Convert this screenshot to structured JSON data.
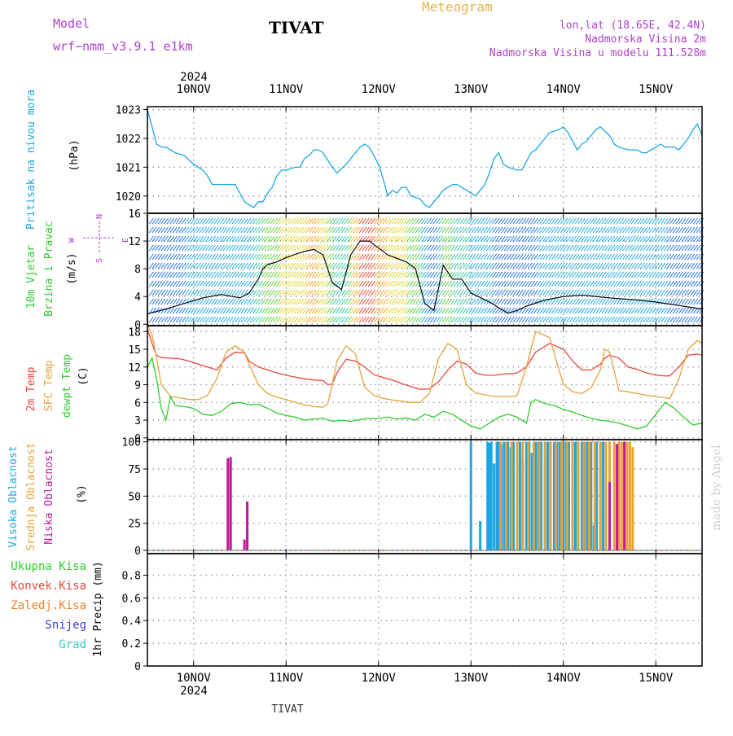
{
  "header": {
    "model_label": "Model",
    "model_name": "wrf−nmm_v3.9.1  e1km",
    "station": "TIVAT",
    "product": "Meteogram",
    "lonlat": "lon,lat (18.65E, 42.4N)",
    "altitude": "Nadmorska Visina 2m",
    "altitude_model": "Nadmorska Visina u modelu 111.528m"
  },
  "footer": {
    "station": "TIVAT",
    "watermark": "made by Angel"
  },
  "colors": {
    "pressure": "#1aa7e6",
    "temp2m": "#e8463c",
    "sfctemp": "#e6a23a",
    "dewpt": "#2ecc2e",
    "cloud_high": "#1aa7e6",
    "cloud_mid": "#e6a23a",
    "cloud_low": "#c0179a",
    "precip_total": "#2ecc2e",
    "precip_conv": "#e8463c",
    "precip_frozen": "#f07f2a",
    "snow": "#3a3adc",
    "graupel": "#2ec8c8",
    "grid": "#9a9a9a"
  },
  "chart_data": [
    {
      "type": "line",
      "id": "pressure",
      "ylabel_lines": [
        "Pritisak na nivou mora",
        "(hPa)"
      ],
      "x_unit": "day of month (November 2024)",
      "xlim": [
        9.5,
        15.5
      ],
      "ylim": [
        1019.4,
        1023.1
      ],
      "yticks": [
        1020,
        1021,
        1022,
        1023
      ],
      "top_axis_year": "2024",
      "x_tick_labels": [
        "10NOV",
        "11NOV",
        "12NOV",
        "13NOV",
        "14NOV",
        "15NOV"
      ],
      "series": [
        {
          "name": "",
          "x": [
            9.5,
            9.55,
            9.6,
            9.65,
            9.7,
            9.75,
            9.8,
            9.9,
            10.0,
            10.1,
            10.15,
            10.2,
            10.25,
            10.3,
            10.4,
            10.45,
            10.5,
            10.55,
            10.6,
            10.65,
            10.7,
            10.75,
            10.8,
            10.85,
            10.9,
            10.95,
            11.0,
            11.1,
            11.15,
            11.2,
            11.25,
            11.3,
            11.35,
            11.4,
            11.5,
            11.55,
            11.65,
            11.75,
            11.8,
            11.85,
            11.9,
            12.0,
            12.05,
            12.1,
            12.15,
            12.2,
            12.25,
            12.3,
            12.35,
            12.45,
            12.5,
            12.55,
            12.6,
            12.65,
            12.7,
            12.75,
            12.8,
            12.85,
            12.9,
            13.0,
            13.05,
            13.1,
            13.15,
            13.2,
            13.25,
            13.3,
            13.35,
            13.4,
            13.5,
            13.55,
            13.6,
            13.65,
            13.7,
            13.8,
            13.85,
            13.95,
            14.0,
            14.05,
            14.1,
            14.15,
            14.2,
            14.25,
            14.3,
            14.35,
            14.4,
            14.5,
            14.55,
            14.6,
            14.7,
            14.8,
            14.85,
            14.9,
            15.0,
            15.05,
            15.1,
            15.15,
            15.2,
            15.25,
            15.3,
            15.35,
            15.4,
            15.45,
            15.5
          ],
          "y": [
            1023.0,
            1022.4,
            1021.8,
            1021.7,
            1021.7,
            1021.6,
            1021.5,
            1021.4,
            1021.1,
            1020.9,
            1020.7,
            1020.4,
            1020.4,
            1020.4,
            1020.4,
            1020.4,
            1020.1,
            1019.8,
            1019.7,
            1019.6,
            1019.8,
            1019.8,
            1020.1,
            1020.3,
            1020.7,
            1020.9,
            1020.9,
            1021.0,
            1021.0,
            1021.3,
            1021.4,
            1021.6,
            1021.6,
            1021.5,
            1021.0,
            1020.8,
            1021.1,
            1021.5,
            1021.7,
            1021.8,
            1021.7,
            1021.1,
            1020.6,
            1020.0,
            1020.2,
            1020.1,
            1020.3,
            1020.3,
            1020.0,
            1019.9,
            1019.7,
            1019.6,
            1019.8,
            1020.0,
            1020.2,
            1020.3,
            1020.4,
            1020.4,
            1020.3,
            1020.1,
            1020.0,
            1020.2,
            1020.4,
            1020.8,
            1021.3,
            1021.5,
            1021.1,
            1021.0,
            1020.9,
            1020.9,
            1021.2,
            1021.5,
            1021.6,
            1022.0,
            1022.2,
            1022.3,
            1022.4,
            1022.2,
            1021.9,
            1021.6,
            1021.8,
            1021.9,
            1022.1,
            1022.3,
            1022.4,
            1022.1,
            1021.8,
            1021.7,
            1021.6,
            1021.6,
            1021.5,
            1021.5,
            1021.7,
            1021.8,
            1021.7,
            1021.7,
            1021.7,
            1021.6,
            1021.8,
            1022.0,
            1022.3,
            1022.5,
            1022.1
          ]
        }
      ]
    },
    {
      "type": "line",
      "id": "wind",
      "ylabel_lines": [
        "10m Vjetar",
        "Brzina i Pravac",
        "(m/s)"
      ],
      "compass": {
        "n": "N",
        "s": "S",
        "e": "E",
        "w": "W"
      },
      "xlim": [
        9.5,
        15.5
      ],
      "ylim": [
        -0.2,
        16
      ],
      "yticks": [
        0,
        4,
        8,
        12,
        16
      ],
      "series": [
        {
          "name": "",
          "x": [
            9.5,
            9.7,
            9.9,
            10.1,
            10.3,
            10.5,
            10.6,
            10.7,
            10.75,
            10.8,
            10.9,
            11.0,
            11.1,
            11.2,
            11.3,
            11.4,
            11.5,
            11.6,
            11.7,
            11.8,
            11.9,
            12.0,
            12.1,
            12.2,
            12.3,
            12.4,
            12.5,
            12.6,
            12.7,
            12.8,
            12.9,
            13.0,
            13.2,
            13.4,
            13.5,
            13.6,
            13.8,
            14.0,
            14.2,
            14.5,
            14.8,
            15.0,
            15.2,
            15.5
          ],
          "y": [
            1.5,
            2.2,
            3.0,
            3.8,
            4.3,
            3.8,
            4.5,
            6.5,
            8.0,
            8.6,
            9.0,
            9.6,
            10.1,
            10.5,
            10.8,
            10.0,
            6.0,
            5.0,
            10.0,
            12.0,
            12.0,
            11.0,
            10.0,
            9.5,
            9.0,
            8.0,
            3.0,
            2.0,
            8.5,
            6.5,
            6.5,
            4.5,
            3.2,
            1.6,
            2.0,
            2.6,
            3.5,
            4.0,
            4.2,
            3.8,
            3.5,
            3.2,
            2.8,
            2.2
          ]
        }
      ],
      "barb_colors_note": "wind direction barbs color-coded by speed (blue/green/yellow/orange/red)"
    },
    {
      "type": "line",
      "id": "temperature",
      "ylabel_lines": [
        "2m Temp",
        "SFC Temp",
        "dewpt Temp",
        "(C)"
      ],
      "xlim": [
        9.5,
        15.5
      ],
      "ylim": [
        -0.3,
        19
      ],
      "yticks": [
        0,
        3,
        6,
        9,
        12,
        15,
        18
      ],
      "series": [
        {
          "name": "2m Temp",
          "color": "#e8463c",
          "x": [
            9.5,
            9.55,
            9.6,
            9.65,
            9.75,
            9.85,
            9.95,
            10.05,
            10.15,
            10.25,
            10.35,
            10.45,
            10.55,
            10.6,
            10.7,
            10.8,
            10.9,
            11.0,
            11.1,
            11.2,
            11.3,
            11.4,
            11.45,
            11.5,
            11.55,
            11.65,
            11.75,
            11.85,
            11.95,
            12.05,
            12.15,
            12.25,
            12.35,
            12.45,
            12.55,
            12.65,
            12.75,
            12.85,
            12.95,
            13.05,
            13.15,
            13.25,
            13.35,
            13.45,
            13.5,
            13.6,
            13.7,
            13.85,
            14.0,
            14.1,
            14.2,
            14.3,
            14.4,
            14.45,
            14.5,
            14.6,
            14.7,
            14.8,
            14.9,
            15.0,
            15.1,
            15.15,
            15.25,
            15.35,
            15.45,
            15.5
          ],
          "y": [
            18.5,
            16.0,
            14.0,
            13.6,
            13.5,
            13.4,
            13.0,
            12.5,
            12.0,
            11.5,
            13.5,
            14.5,
            14.4,
            13.0,
            12.0,
            11.5,
            11.0,
            10.6,
            10.3,
            10.0,
            9.8,
            9.7,
            9.0,
            9.1,
            11.0,
            13.3,
            13.0,
            12.0,
            10.7,
            10.2,
            9.8,
            9.2,
            8.7,
            8.2,
            8.3,
            9.5,
            11.5,
            13.0,
            12.5,
            11.0,
            10.6,
            10.6,
            10.8,
            10.9,
            11.0,
            12.0,
            14.5,
            16.0,
            15.0,
            13.0,
            11.5,
            11.5,
            12.5,
            13.5,
            14.0,
            13.5,
            12.0,
            11.6,
            11.0,
            10.6,
            10.5,
            10.5,
            12.0,
            14.0,
            14.2,
            14.0
          ]
        },
        {
          "name": "SFC Temp",
          "color": "#e6a23a",
          "x": [
            9.5,
            9.55,
            9.6,
            9.65,
            9.75,
            9.85,
            9.95,
            10.05,
            10.15,
            10.25,
            10.35,
            10.45,
            10.55,
            10.6,
            10.7,
            10.8,
            10.9,
            11.0,
            11.1,
            11.2,
            11.3,
            11.4,
            11.45,
            11.5,
            11.55,
            11.65,
            11.75,
            11.85,
            11.95,
            12.05,
            12.15,
            12.25,
            12.35,
            12.45,
            12.55,
            12.65,
            12.75,
            12.85,
            12.95,
            13.05,
            13.15,
            13.25,
            13.35,
            13.45,
            13.5,
            13.6,
            13.7,
            13.85,
            14.0,
            14.1,
            14.2,
            14.3,
            14.4,
            14.45,
            14.5,
            14.6,
            14.7,
            14.8,
            14.9,
            15.0,
            15.1,
            15.15,
            15.25,
            15.35,
            15.45,
            15.5
          ],
          "y": [
            19.2,
            17.5,
            13.5,
            9.0,
            7.0,
            6.8,
            6.5,
            6.5,
            7.2,
            10.0,
            14.5,
            15.6,
            14.5,
            12.5,
            9.0,
            7.5,
            6.9,
            6.5,
            6.0,
            5.6,
            5.3,
            5.2,
            5.7,
            9.0,
            13.0,
            15.6,
            14.2,
            8.6,
            7.2,
            6.7,
            6.4,
            6.2,
            6.0,
            6.0,
            7.5,
            13.5,
            16.0,
            15.0,
            9.0,
            7.6,
            7.3,
            7.0,
            7.0,
            7.0,
            7.2,
            12.0,
            18.0,
            17.0,
            9.0,
            7.8,
            7.5,
            8.5,
            11.5,
            15.0,
            14.5,
            8.0,
            7.8,
            7.5,
            7.2,
            7.0,
            6.8,
            6.6,
            10.0,
            15.0,
            16.5,
            16.0
          ]
        },
        {
          "name": "dewpt Temp",
          "color": "#2ecc2e",
          "x": [
            9.5,
            9.55,
            9.6,
            9.65,
            9.7,
            9.75,
            9.8,
            9.9,
            10.0,
            10.1,
            10.2,
            10.3,
            10.4,
            10.5,
            10.6,
            10.7,
            10.8,
            10.9,
            11.0,
            11.1,
            11.2,
            11.3,
            11.4,
            11.5,
            11.6,
            11.7,
            11.8,
            11.9,
            12.0,
            12.1,
            12.2,
            12.3,
            12.4,
            12.5,
            12.6,
            12.7,
            12.8,
            12.9,
            13.0,
            13.1,
            13.2,
            13.3,
            13.4,
            13.5,
            13.6,
            13.65,
            13.7,
            13.8,
            13.9,
            14.0,
            14.1,
            14.2,
            14.3,
            14.4,
            14.5,
            14.6,
            14.7,
            14.8,
            14.9,
            15.0,
            15.1,
            15.2,
            15.3,
            15.4,
            15.5
          ],
          "y": [
            12.0,
            13.5,
            10.0,
            5.0,
            3.0,
            7.0,
            5.5,
            5.3,
            5.0,
            4.0,
            3.8,
            4.5,
            5.8,
            6.0,
            5.6,
            5.7,
            5.0,
            4.2,
            3.8,
            3.5,
            3.0,
            3.2,
            3.3,
            2.8,
            3.0,
            2.8,
            3.1,
            3.3,
            3.3,
            3.5,
            3.2,
            3.4,
            3.0,
            4.0,
            3.5,
            4.5,
            4.0,
            3.0,
            2.0,
            1.5,
            2.5,
            3.5,
            4.0,
            3.5,
            2.5,
            6.0,
            6.5,
            5.8,
            5.5,
            4.8,
            4.4,
            3.8,
            3.3,
            3.0,
            2.8,
            2.5,
            2.0,
            1.5,
            2.0,
            4.0,
            6.0,
            5.0,
            3.5,
            2.2,
            2.5
          ]
        }
      ]
    },
    {
      "type": "bar",
      "id": "cloud",
      "ylabel_lines": [
        "Visoka Oblacnost",
        "Srednja Oblacnost",
        "Niska Oblacnost",
        "(%)"
      ],
      "xlim": [
        9.5,
        15.5
      ],
      "ylim": [
        -3,
        102
      ],
      "yticks": [
        0,
        25,
        50,
        75,
        100
      ],
      "series": [
        {
          "name": "Visoka Oblacnost",
          "color": "#1aa7e6",
          "x": [
            13.0,
            13.1,
            13.18,
            13.2,
            13.22,
            13.25,
            13.28,
            13.3,
            13.33,
            13.36,
            13.4,
            13.43,
            13.46,
            13.5,
            13.53,
            13.56,
            13.6,
            13.63,
            13.66,
            13.7,
            13.73,
            13.76,
            13.8,
            13.83,
            13.86,
            13.9,
            13.93,
            13.96,
            14.0,
            14.03,
            14.06,
            14.1,
            14.13,
            14.16,
            14.2,
            14.23,
            14.26,
            14.3,
            14.33,
            14.36,
            14.4,
            14.43
          ],
          "y": [
            100,
            27,
            100,
            99,
            100,
            80,
            100,
            100,
            98,
            100,
            100,
            95,
            100,
            100,
            100,
            85,
            100,
            100,
            90,
            100,
            100,
            100,
            85,
            100,
            100,
            100,
            100,
            100,
            100,
            100,
            100,
            100,
            100,
            100,
            100,
            100,
            100,
            100,
            23,
            100,
            100,
            100
          ]
        },
        {
          "name": "Srednja Oblacnost",
          "color": "#e6a23a",
          "x": [
            13.32,
            13.38,
            13.44,
            13.5,
            13.56,
            13.62,
            13.68,
            13.74,
            13.8,
            13.86,
            13.92,
            13.98,
            14.04,
            14.1,
            14.16,
            14.22,
            14.28,
            14.34,
            14.4,
            14.46,
            14.5,
            14.55,
            14.6,
            14.63,
            14.66,
            14.69,
            14.72,
            14.75
          ],
          "y": [
            100,
            100,
            100,
            100,
            100,
            100,
            100,
            100,
            100,
            100,
            100,
            100,
            100,
            100,
            100,
            100,
            100,
            100,
            100,
            100,
            100,
            100,
            100,
            100,
            100,
            100,
            100,
            95
          ]
        },
        {
          "name": "Niska Oblacnost",
          "color": "#c0179a",
          "x": [
            10.37,
            10.4,
            10.55,
            10.58,
            14.5,
            14.58,
            14.66
          ],
          "y": [
            85,
            86,
            10,
            45,
            63,
            98,
            100
          ]
        }
      ]
    },
    {
      "type": "bar",
      "id": "precip",
      "ylabel_lines": [
        "1hr Precip (mm)"
      ],
      "xlim": [
        9.5,
        15.5
      ],
      "ylim": [
        0,
        0.99
      ],
      "yticks": [
        0,
        0.2,
        0.4,
        0.6,
        0.8
      ],
      "bottom_axis_year": "2024",
      "legend": [
        {
          "label": "Ukupna  Kisa",
          "color": "#2ecc2e"
        },
        {
          "label": "Konvek.Kisa",
          "color": "#e8463c"
        },
        {
          "label": "Zaledj.Kisa",
          "color": "#f07f2a"
        },
        {
          "label": "Snijeg",
          "color": "#3a3adc"
        },
        {
          "label": "Grad",
          "color": "#2ec8c8"
        }
      ],
      "series": []
    }
  ]
}
